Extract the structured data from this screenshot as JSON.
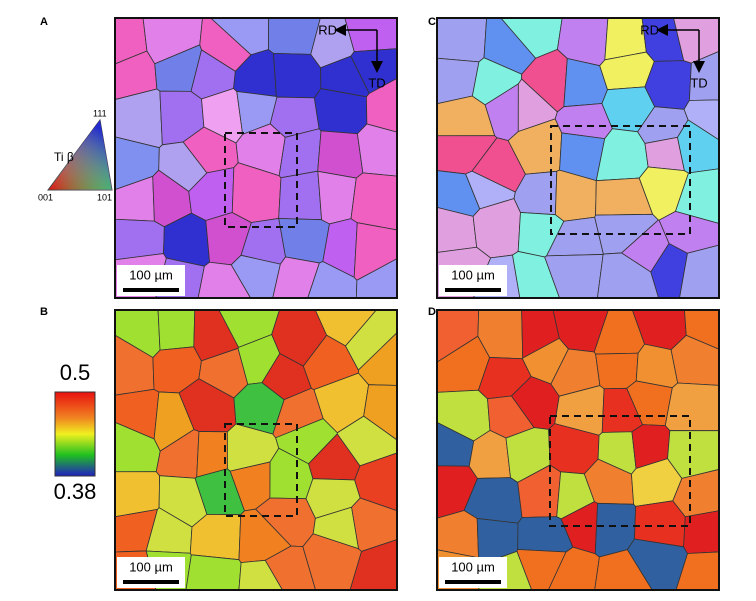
{
  "panels": [
    {
      "label": "A",
      "scale_bar": "100 µm",
      "directions": {
        "rd": "RD",
        "td": "TD"
      }
    },
    {
      "label": "B",
      "scale_bar": "100 µm"
    },
    {
      "label": "C",
      "scale_bar": "100 µm",
      "directions": {
        "rd": "RD",
        "td": "TD"
      }
    },
    {
      "label": "D",
      "scale_bar": "100 µm"
    }
  ],
  "ipf_legend": {
    "phase": "Ti β",
    "corners": [
      "111",
      "001",
      "101"
    ]
  },
  "colorbar": {
    "max": 0.5,
    "min": 0.38
  }
}
